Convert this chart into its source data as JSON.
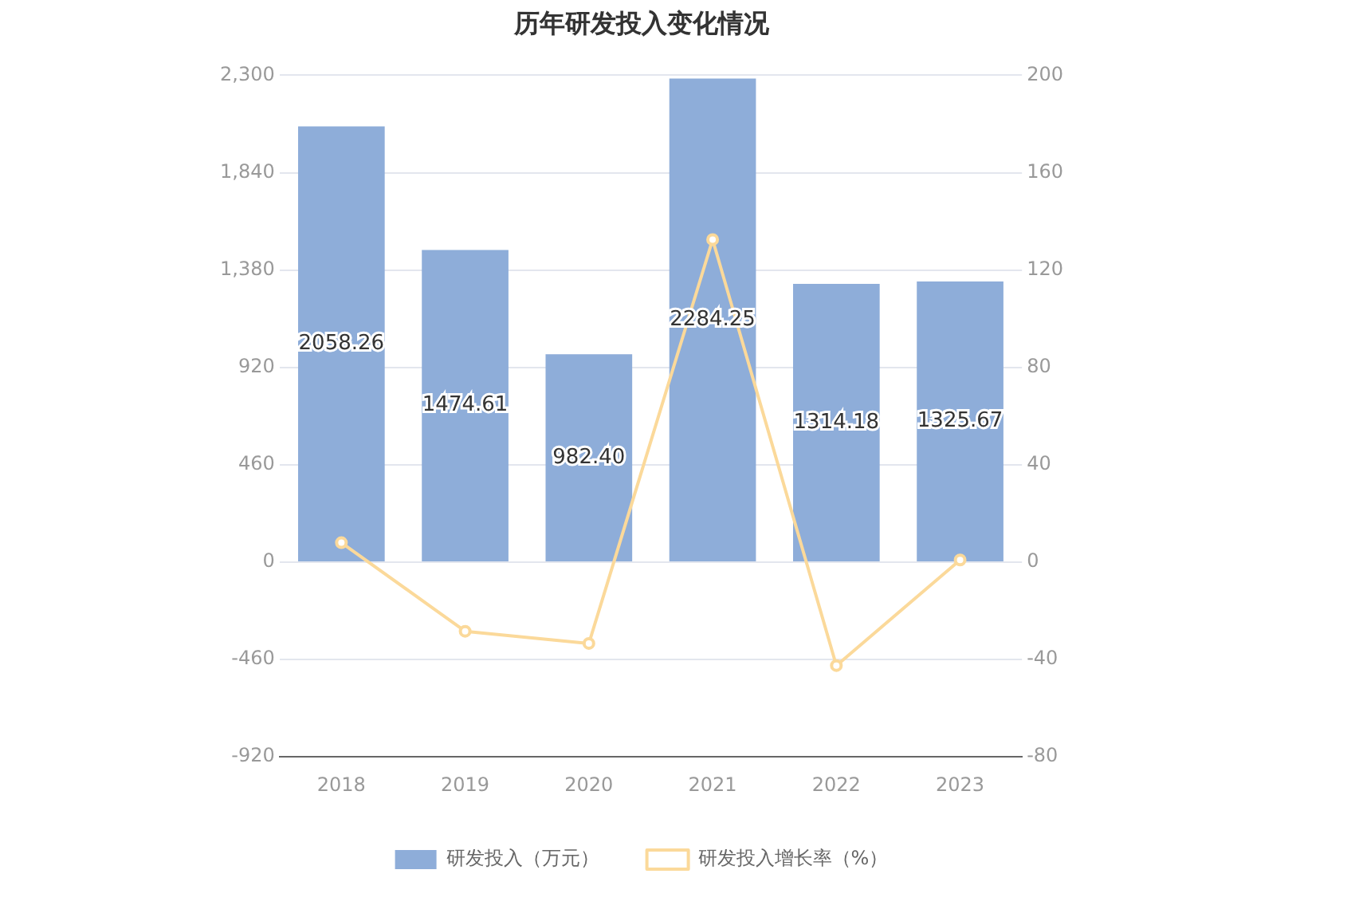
{
  "chart_data": {
    "type": "bar",
    "title": "历年研发投入变化情况",
    "categories": [
      "2018",
      "2019",
      "2020",
      "2021",
      "2022",
      "2023"
    ],
    "series": [
      {
        "name": "研发投入（万元）",
        "color": "#8eadd9",
        "values": [
          2058.26,
          1474.61,
          982.4,
          2284.25,
          1314.18,
          1325.67
        ],
        "value_labels": [
          "2058.26",
          "1474.61",
          "982.40",
          "2284.25",
          "1314.18",
          "1325.67"
        ]
      },
      {
        "name": "研发投入增长率（%）",
        "type": "line",
        "axis": "y2",
        "color": "#fbd99a",
        "marker": "circle",
        "values": [
          8,
          -28.4,
          -33.4,
          132.5,
          -42.5,
          0.9
        ]
      }
    ],
    "ylim": [
      -920,
      2300
    ],
    "yticks": [
      -920,
      -460,
      0,
      460,
      920,
      {
        "value": 1380,
        "label": "1,380"
      },
      {
        "value": 1840,
        "label": "1,840"
      },
      {
        "value": 2300,
        "label": "2,300"
      }
    ],
    "y2lim": [
      -80,
      200
    ],
    "y2ticks": [
      -80,
      -40,
      0,
      40,
      80,
      120,
      160,
      200
    ],
    "grid": "y",
    "legend": "bottom"
  }
}
